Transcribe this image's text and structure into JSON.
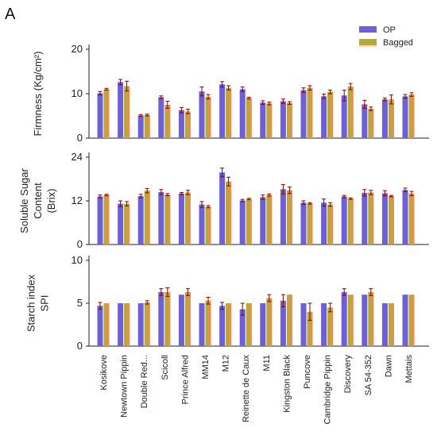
{
  "figure": {
    "panel_letter": "A"
  },
  "colors": {
    "op": "#6f5fd6",
    "bagged": "#b5a93a",
    "bagged_overlay": "#e8904a",
    "error": "#8b0000"
  },
  "chart_data": [
    {
      "type": "bar",
      "ylabel": [
        "Firmness (Kg/cm²)"
      ],
      "ylim": [
        0,
        20
      ],
      "yticks": [
        0,
        10,
        20
      ],
      "legend": {
        "position": "top-right",
        "entries": [
          "OP",
          "Bagged"
        ]
      },
      "categories": [
        "Kosikove",
        "Newtown Pippin",
        "Double Red...",
        "Scicoll",
        "Prince Alfred",
        "MM14",
        "M12",
        "Reinette de Caux",
        "M11",
        "Kingston Black",
        "Puncove",
        "Cambridge Pippin",
        "Discovery",
        "SA 54-352",
        "Dawn",
        "Mettais"
      ],
      "series": [
        {
          "name": "OP",
          "values": [
            10.1,
            12.6,
            5.1,
            9.2,
            6.3,
            10.5,
            12.1,
            11.0,
            8.0,
            8.3,
            10.8,
            9.4,
            9.6,
            7.6,
            8.7,
            9.4
          ],
          "errors": [
            0.4,
            0.6,
            0.2,
            0.3,
            0.6,
            1.0,
            0.6,
            0.5,
            0.4,
            0.5,
            0.5,
            0.5,
            1.2,
            0.9,
            0.3,
            0.4
          ]
        },
        {
          "name": "Bagged",
          "values": [
            11.0,
            11.7,
            5.2,
            7.5,
            6.0,
            9.3,
            11.3,
            9.0,
            7.8,
            7.9,
            11.3,
            10.4,
            11.6,
            6.6,
            8.7,
            9.8
          ],
          "errors": [
            0.2,
            1.1,
            0.2,
            0.8,
            0.5,
            0.5,
            0.5,
            0.2,
            0.3,
            0.3,
            0.5,
            0.4,
            0.7,
            0.4,
            1.0,
            0.4
          ]
        }
      ]
    },
    {
      "type": "bar",
      "ylabel": [
        "Soluble Sugar",
        "Content",
        "(Brix)"
      ],
      "ylim": [
        0,
        24
      ],
      "yticks": [
        0,
        12,
        24
      ],
      "categories": [
        "Kosikove",
        "Newtown Pippin",
        "Double Red...",
        "Scicoll",
        "Prince Alfred",
        "MM14",
        "M12",
        "Reinette de Caux",
        "M11",
        "Kingston Black",
        "Puncove",
        "Cambridge Pippin",
        "Discovery",
        "SA 54-352",
        "Dawn",
        "Mettais"
      ],
      "series": [
        {
          "name": "OP",
          "values": [
            13.2,
            11.2,
            13.3,
            14.4,
            14.0,
            11.0,
            19.8,
            12.1,
            13.0,
            15.2,
            11.5,
            11.5,
            13.2,
            14.2,
            14.1,
            15.0
          ],
          "errors": [
            0.4,
            0.8,
            0.5,
            0.7,
            0.3,
            0.8,
            1.2,
            0.3,
            0.6,
            1.3,
            0.5,
            1.0,
            0.3,
            0.9,
            0.7,
            0.5
          ]
        },
        {
          "name": "Bagged",
          "values": [
            13.6,
            11.2,
            14.8,
            13.7,
            14.3,
            10.4,
            17.3,
            12.5,
            13.6,
            14.9,
            11.3,
            11.0,
            12.6,
            14.3,
            13.3,
            14.0
          ],
          "errors": [
            0.2,
            0.6,
            0.6,
            0.3,
            0.6,
            0.3,
            1.2,
            0.2,
            0.3,
            0.9,
            0.2,
            0.5,
            0.2,
            0.6,
            0.2,
            0.6
          ]
        }
      ]
    },
    {
      "type": "bar",
      "ylabel": [
        "Starch index",
        "SPI"
      ],
      "ylim": [
        0,
        10
      ],
      "yticks": [
        0,
        5,
        10
      ],
      "categories": [
        "Kosikove",
        "Newtown Pippin",
        "Double Red...",
        "Scicoll",
        "Prince Alfred",
        "MM14",
        "M12",
        "Reinette de Caux",
        "M11",
        "Kingston Black",
        "Puncove",
        "Cambridge Pippin",
        "Discovery",
        "SA 54-352",
        "Dawn",
        "Mettais"
      ],
      "series": [
        {
          "name": "OP",
          "values": [
            4.7,
            5.0,
            5.0,
            6.3,
            6.0,
            5.0,
            4.7,
            4.3,
            5.0,
            5.3,
            5.0,
            5.0,
            6.3,
            6.0,
            5.0,
            6.0
          ],
          "errors": [
            0.4,
            0.0,
            0.0,
            0.4,
            0.0,
            0.0,
            0.4,
            0.7,
            0.0,
            0.7,
            0.0,
            0.0,
            0.4,
            0.0,
            0.0,
            0.0
          ]
        },
        {
          "name": "Bagged",
          "values": [
            5.0,
            5.0,
            5.1,
            6.3,
            6.3,
            5.3,
            5.0,
            5.0,
            5.6,
            6.0,
            4.0,
            4.5,
            6.0,
            6.3,
            5.0,
            6.0
          ],
          "errors": [
            0.0,
            0.0,
            0.2,
            0.5,
            0.4,
            0.4,
            0.0,
            0.0,
            0.4,
            0.0,
            1.0,
            0.5,
            0.0,
            0.4,
            0.0,
            0.0
          ]
        }
      ]
    }
  ]
}
